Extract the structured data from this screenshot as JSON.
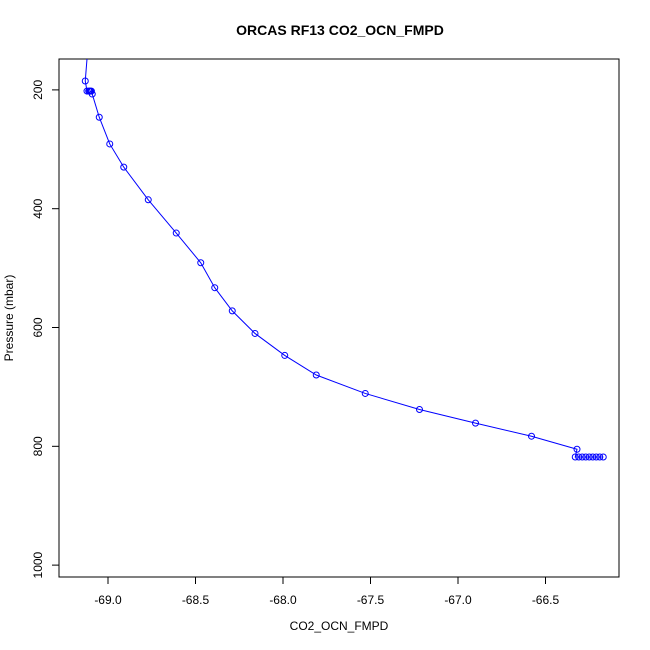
{
  "chart_data": {
    "type": "line",
    "title": "ORCAS RF13 CO2_OCN_FMPD",
    "xlabel": "CO2_OCN_FMPD",
    "ylabel": "Pressure (mbar)",
    "xlim": [
      -69.28,
      -66.08
    ],
    "ylim": [
      1020,
      148
    ],
    "y_inverted": true,
    "x_ticks": [
      -69.0,
      -68.5,
      -68.0,
      -67.5,
      -67.0,
      -66.5
    ],
    "x_tick_labels": [
      "-69.0",
      "-68.5",
      "-68.0",
      "-67.5",
      "-67.0",
      "-66.5"
    ],
    "y_ticks": [
      200,
      400,
      600,
      800,
      1000
    ],
    "y_tick_labels": [
      "200",
      "400",
      "600",
      "800",
      "1000"
    ],
    "grid": false,
    "series_color": "#0000ff",
    "series": [
      {
        "line_points": [
          {
            "x": -69.12,
            "y": 148
          },
          {
            "x": -69.13,
            "y": 185
          },
          {
            "x": -69.12,
            "y": 202
          },
          {
            "x": -69.09,
            "y": 207
          },
          {
            "x": -69.05,
            "y": 246
          },
          {
            "x": -68.99,
            "y": 291
          },
          {
            "x": -68.91,
            "y": 330
          },
          {
            "x": -68.77,
            "y": 385
          },
          {
            "x": -68.61,
            "y": 441
          },
          {
            "x": -68.47,
            "y": 491
          },
          {
            "x": -68.39,
            "y": 533
          },
          {
            "x": -68.29,
            "y": 572
          },
          {
            "x": -68.16,
            "y": 610
          },
          {
            "x": -67.99,
            "y": 647
          },
          {
            "x": -67.81,
            "y": 680
          },
          {
            "x": -67.53,
            "y": 711
          },
          {
            "x": -67.22,
            "y": 738
          },
          {
            "x": -66.9,
            "y": 761
          },
          {
            "x": -66.58,
            "y": 783
          },
          {
            "x": -66.32,
            "y": 805
          },
          {
            "x": -66.33,
            "y": 818
          },
          {
            "x": -66.17,
            "y": 818
          }
        ],
        "points": [
          {
            "x": -69.13,
            "y": 185
          },
          {
            "x": -69.12,
            "y": 202
          },
          {
            "x": -69.11,
            "y": 202
          },
          {
            "x": -69.105,
            "y": 202
          },
          {
            "x": -69.1,
            "y": 202
          },
          {
            "x": -69.095,
            "y": 202
          },
          {
            "x": -69.09,
            "y": 207
          },
          {
            "x": -69.05,
            "y": 246
          },
          {
            "x": -68.99,
            "y": 291
          },
          {
            "x": -68.91,
            "y": 330
          },
          {
            "x": -68.77,
            "y": 385
          },
          {
            "x": -68.61,
            "y": 441
          },
          {
            "x": -68.47,
            "y": 491
          },
          {
            "x": -68.39,
            "y": 533
          },
          {
            "x": -68.29,
            "y": 572
          },
          {
            "x": -68.16,
            "y": 610
          },
          {
            "x": -67.99,
            "y": 647
          },
          {
            "x": -67.81,
            "y": 680
          },
          {
            "x": -67.53,
            "y": 711
          },
          {
            "x": -67.22,
            "y": 738
          },
          {
            "x": -66.9,
            "y": 761
          },
          {
            "x": -66.58,
            "y": 783
          },
          {
            "x": -66.32,
            "y": 805
          },
          {
            "x": -66.33,
            "y": 818
          },
          {
            "x": -66.31,
            "y": 818
          },
          {
            "x": -66.29,
            "y": 818
          },
          {
            "x": -66.27,
            "y": 818
          },
          {
            "x": -66.25,
            "y": 818
          },
          {
            "x": -66.23,
            "y": 818
          },
          {
            "x": -66.21,
            "y": 818
          },
          {
            "x": -66.19,
            "y": 818
          },
          {
            "x": -66.17,
            "y": 818
          }
        ]
      }
    ]
  }
}
